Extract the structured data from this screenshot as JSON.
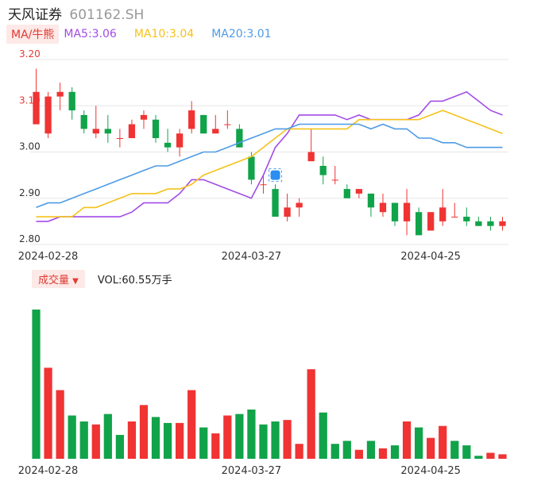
{
  "header": {
    "name": "天风证券",
    "code": "601162.SH"
  },
  "ma_legend": {
    "button": "MA/牛熊",
    "items": [
      {
        "label": "MA5:3.06",
        "color": "#a24ce6"
      },
      {
        "label": "MA10:3.04",
        "color": "#f5c219"
      },
      {
        "label": "MA20:3.01",
        "color": "#4d9be6"
      }
    ]
  },
  "volume_legend": {
    "button": "成交量",
    "arrow": "▼",
    "text": "VOL:60.55万手"
  },
  "colors": {
    "up": "#f03333",
    "down": "#11a34a",
    "grid": "#e6e6e6",
    "axis_text": "#333333",
    "price_label": "#e03b33"
  },
  "marker_icon": "badge-icon",
  "chart_data": [
    {
      "type": "candlestick",
      "y_ticks": [
        "3.20",
        "3.10",
        "3.00",
        "2.90",
        "2.80"
      ],
      "ylim": [
        2.8,
        3.2
      ],
      "x_labels": [
        {
          "index": 1,
          "label": "2024-02-28"
        },
        {
          "index": 18,
          "label": "2024-03-27"
        },
        {
          "index": 33,
          "label": "2024-04-25"
        }
      ],
      "candles": [
        {
          "o": 3.06,
          "h": 3.18,
          "l": 3.06,
          "c": 3.13
        },
        {
          "o": 3.04,
          "h": 3.13,
          "l": 3.03,
          "c": 3.12
        },
        {
          "o": 3.12,
          "h": 3.15,
          "l": 3.09,
          "c": 3.13
        },
        {
          "o": 3.13,
          "h": 3.14,
          "l": 3.07,
          "c": 3.09
        },
        {
          "o": 3.08,
          "h": 3.09,
          "l": 3.04,
          "c": 3.05
        },
        {
          "o": 3.04,
          "h": 3.1,
          "l": 3.03,
          "c": 3.05
        },
        {
          "o": 3.05,
          "h": 3.08,
          "l": 3.02,
          "c": 3.04
        },
        {
          "o": 3.03,
          "h": 3.05,
          "l": 3.01,
          "c": 3.03
        },
        {
          "o": 3.03,
          "h": 3.07,
          "l": 3.03,
          "c": 3.06
        },
        {
          "o": 3.07,
          "h": 3.09,
          "l": 3.05,
          "c": 3.08
        },
        {
          "o": 3.07,
          "h": 3.08,
          "l": 3.02,
          "c": 3.03
        },
        {
          "o": 3.02,
          "h": 3.05,
          "l": 3.0,
          "c": 3.01
        },
        {
          "o": 3.01,
          "h": 3.05,
          "l": 2.99,
          "c": 3.04
        },
        {
          "o": 3.05,
          "h": 3.11,
          "l": 3.04,
          "c": 3.09
        },
        {
          "o": 3.08,
          "h": 3.08,
          "l": 3.04,
          "c": 3.04
        },
        {
          "o": 3.04,
          "h": 3.08,
          "l": 3.04,
          "c": 3.05
        },
        {
          "o": 3.06,
          "h": 3.09,
          "l": 3.05,
          "c": 3.06
        },
        {
          "o": 3.05,
          "h": 3.06,
          "l": 3.01,
          "c": 3.01
        },
        {
          "o": 2.99,
          "h": 3.0,
          "l": 2.93,
          "c": 2.94
        },
        {
          "o": 2.93,
          "h": 2.95,
          "l": 2.91,
          "c": 2.93
        },
        {
          "o": 2.92,
          "h": 2.93,
          "l": 2.86,
          "c": 2.86
        },
        {
          "o": 2.86,
          "h": 2.91,
          "l": 2.85,
          "c": 2.88
        },
        {
          "o": 2.88,
          "h": 2.9,
          "l": 2.86,
          "c": 2.89
        },
        {
          "o": 2.98,
          "h": 3.05,
          "l": 2.98,
          "c": 3.0
        },
        {
          "o": 2.97,
          "h": 2.99,
          "l": 2.93,
          "c": 2.95
        },
        {
          "o": 2.94,
          "h": 2.97,
          "l": 2.93,
          "c": 2.94
        },
        {
          "o": 2.92,
          "h": 2.93,
          "l": 2.9,
          "c": 2.9
        },
        {
          "o": 2.91,
          "h": 2.92,
          "l": 2.9,
          "c": 2.92
        },
        {
          "o": 2.91,
          "h": 2.91,
          "l": 2.86,
          "c": 2.88
        },
        {
          "o": 2.87,
          "h": 2.91,
          "l": 2.86,
          "c": 2.89
        },
        {
          "o": 2.89,
          "h": 2.89,
          "l": 2.84,
          "c": 2.85
        },
        {
          "o": 2.85,
          "h": 2.92,
          "l": 2.82,
          "c": 2.89
        },
        {
          "o": 2.87,
          "h": 2.88,
          "l": 2.82,
          "c": 2.82
        },
        {
          "o": 2.83,
          "h": 2.87,
          "l": 2.83,
          "c": 2.87
        },
        {
          "o": 2.85,
          "h": 2.92,
          "l": 2.84,
          "c": 2.88
        },
        {
          "o": 2.86,
          "h": 2.89,
          "l": 2.86,
          "c": 2.86
        },
        {
          "o": 2.86,
          "h": 2.88,
          "l": 2.84,
          "c": 2.85
        },
        {
          "o": 2.85,
          "h": 2.86,
          "l": 2.84,
          "c": 2.84
        },
        {
          "o": 2.85,
          "h": 2.86,
          "l": 2.83,
          "c": 2.84
        },
        {
          "o": 2.84,
          "h": 2.86,
          "l": 2.83,
          "c": 2.85
        }
      ],
      "series": [
        {
          "name": "MA5",
          "color": "#a24ce6",
          "values": [
            2.85,
            2.85,
            2.86,
            2.86,
            2.86,
            2.86,
            2.86,
            2.86,
            2.87,
            2.89,
            2.89,
            2.89,
            2.91,
            2.94,
            2.94,
            2.93,
            2.92,
            2.91,
            2.9,
            2.95,
            3.01,
            3.04,
            3.08,
            3.08,
            3.08,
            3.08,
            3.07,
            3.08,
            3.07,
            3.07,
            3.07,
            3.07,
            3.08,
            3.11,
            3.11,
            3.12,
            3.13,
            3.11,
            3.09,
            3.08
          ]
        },
        {
          "name": "MA10",
          "color": "#f5c219",
          "values": [
            2.86,
            2.86,
            2.86,
            2.86,
            2.88,
            2.88,
            2.89,
            2.9,
            2.91,
            2.91,
            2.91,
            2.92,
            2.92,
            2.93,
            2.95,
            2.96,
            2.97,
            2.98,
            2.99,
            3.01,
            3.03,
            3.05,
            3.05,
            3.05,
            3.05,
            3.05,
            3.05,
            3.07,
            3.07,
            3.07,
            3.07,
            3.07,
            3.07,
            3.08,
            3.09,
            3.08,
            3.07,
            3.06,
            3.05,
            3.04
          ]
        },
        {
          "name": "MA20",
          "color": "#4d9be6",
          "values": [
            2.88,
            2.89,
            2.89,
            2.9,
            2.91,
            2.92,
            2.93,
            2.94,
            2.95,
            2.96,
            2.97,
            2.97,
            2.98,
            2.99,
            3.0,
            3.0,
            3.01,
            3.02,
            3.03,
            3.04,
            3.05,
            3.05,
            3.06,
            3.06,
            3.06,
            3.06,
            3.06,
            3.06,
            3.05,
            3.06,
            3.05,
            3.05,
            3.03,
            3.03,
            3.02,
            3.02,
            3.01,
            3.01,
            3.01,
            3.01
          ]
        }
      ],
      "marker": {
        "index": 20,
        "price": 2.95
      }
    },
    {
      "type": "bar",
      "name": "volume",
      "x_labels": [
        "2024-02-28",
        "2024-03-27",
        "2024-04-25"
      ],
      "values": [
        100,
        61,
        46,
        29,
        25,
        23,
        30,
        16,
        25,
        36,
        28,
        24,
        24,
        46,
        21,
        17,
        29,
        30,
        33,
        23,
        25,
        26,
        10,
        60,
        31,
        10,
        12,
        6,
        12,
        7,
        9,
        25,
        21,
        14,
        22,
        12,
        9,
        2,
        4,
        3
      ],
      "up": [
        false,
        true,
        true,
        false,
        false,
        true,
        false,
        false,
        true,
        true,
        false,
        false,
        true,
        true,
        false,
        true,
        true,
        false,
        false,
        false,
        false,
        true,
        true,
        true,
        false,
        false,
        false,
        true,
        false,
        true,
        false,
        true,
        false,
        true,
        true,
        false,
        false,
        false,
        true,
        true
      ]
    }
  ]
}
